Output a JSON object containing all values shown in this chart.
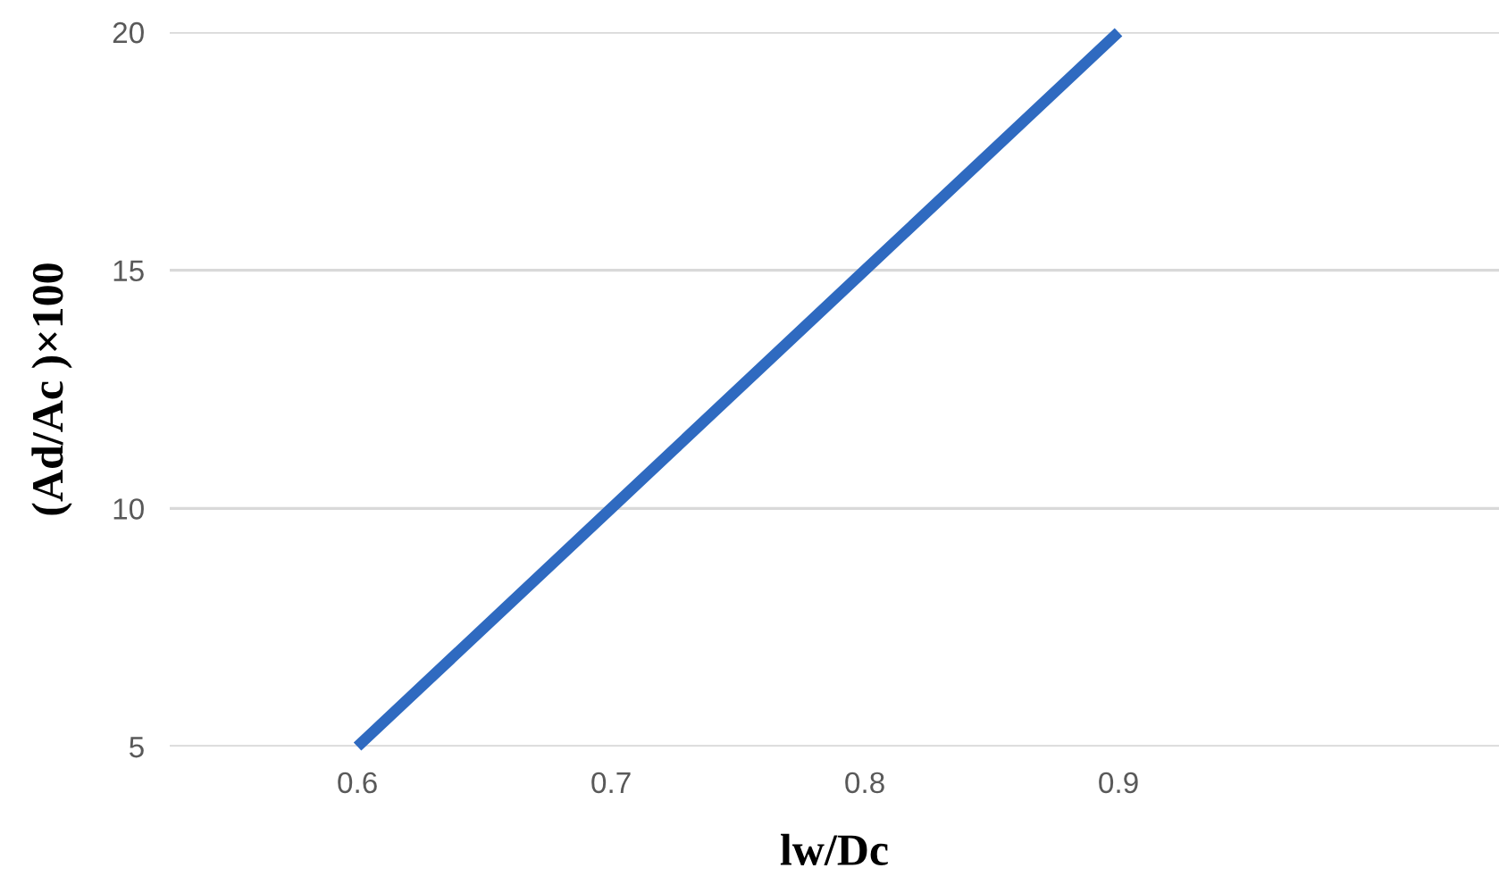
{
  "chart_data": {
    "type": "line",
    "xlabel": "lw/Dc",
    "ylabel": "(Ad/Ac )×100",
    "x": [
      0.6,
      0.7,
      0.8,
      0.9
    ],
    "series": [
      {
        "color": "#2f6ac0",
        "values": [
          5,
          10,
          15,
          20
        ]
      }
    ],
    "xlim": [
      0.526,
      1.05
    ],
    "ylim": [
      5,
      20
    ],
    "xticks": [
      0.6,
      0.7,
      0.8,
      0.9
    ],
    "yticks": [
      5,
      10,
      15,
      20
    ],
    "grid": "y",
    "marker": "none",
    "line_style": "solid"
  }
}
